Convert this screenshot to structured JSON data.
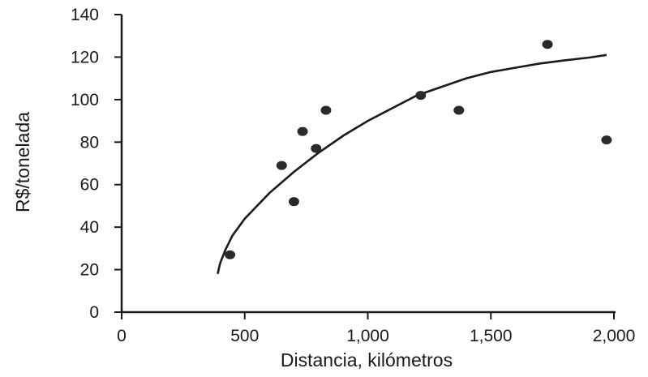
{
  "chart_data": {
    "type": "scatter",
    "xlabel": "Distancia, kilómetros",
    "ylabel": "R$/tonelada",
    "xlim": [
      0,
      2000
    ],
    "ylim": [
      0,
      140
    ],
    "x_ticks": [
      0,
      500,
      1000,
      1500,
      2000
    ],
    "x_tick_labels": [
      "0",
      "500",
      "1,000",
      "1,500",
      "2,000"
    ],
    "y_ticks": [
      0,
      20,
      40,
      60,
      80,
      100,
      120,
      140
    ],
    "y_tick_labels": [
      "0",
      "20",
      "40",
      "60",
      "80",
      "100",
      "120",
      "140"
    ],
    "grid": false,
    "legend": "none",
    "series": [
      {
        "x": [
          440,
          650,
          700,
          735,
          790,
          830,
          1215,
          1370,
          1730,
          1970
        ],
        "y": [
          27,
          69,
          52,
          85,
          77,
          95,
          102,
          95,
          126,
          81
        ]
      }
    ],
    "trendline": {
      "x": [
        390,
        400,
        420,
        450,
        500,
        600,
        700,
        800,
        900,
        1000,
        1100,
        1200,
        1300,
        1400,
        1500,
        1600,
        1700,
        1800,
        1900,
        1970
      ],
      "y": [
        18,
        23,
        29,
        36,
        44,
        56,
        66,
        75,
        83,
        90,
        96,
        102,
        106,
        110,
        113,
        115,
        117,
        118.5,
        119.8,
        121
      ]
    },
    "colors": {
      "axis": "#1a1a1a",
      "points": "#2a2a2a",
      "background": "#ffffff"
    }
  }
}
